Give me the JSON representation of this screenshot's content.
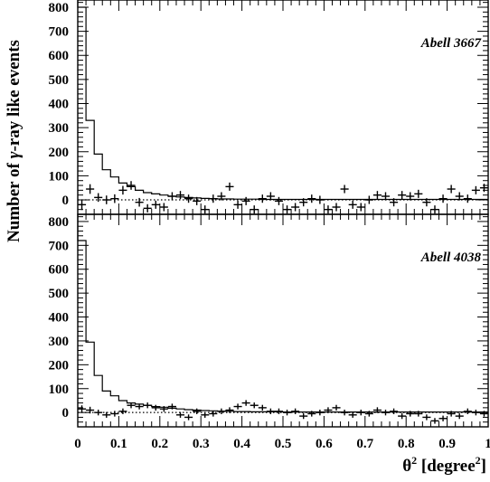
{
  "chart_data": {
    "type": "histogram",
    "ylabel": "Number of γ-ray like events",
    "xlabel": "θ2 [degree2]",
    "xlim": [
      0,
      1
    ],
    "x_ticks": [
      "0",
      "0.1",
      "0.2",
      "0.3",
      "0.4",
      "0.5",
      "0.6",
      "0.7",
      "0.8",
      "0.9",
      "1"
    ],
    "grid": false,
    "panels": [
      {
        "title": "Abell 3667",
        "ylim": [
          -60,
          830
        ],
        "y_ticks": [
          "0",
          "100",
          "200",
          "300",
          "400",
          "500",
          "600",
          "700",
          "800"
        ],
        "series": [
          {
            "style": "histogram-line",
            "bin_width": 0.02,
            "values": [
              800,
              330,
              190,
              125,
              95,
              70,
              55,
              40,
              30,
              25,
              20,
              15,
              12,
              10,
              8,
              6,
              5,
              4,
              4,
              3,
              3,
              3,
              2,
              2,
              2,
              2,
              2,
              2,
              2,
              2,
              2,
              2,
              2,
              2,
              2,
              2,
              2,
              2,
              2,
              2,
              2,
              2,
              2,
              2,
              2,
              2,
              2,
              2,
              2,
              2
            ]
          },
          {
            "style": "points-with-errors",
            "x": [
              0.01,
              0.03,
              0.05,
              0.07,
              0.09,
              0.11,
              0.13,
              0.15,
              0.17,
              0.19,
              0.21,
              0.23,
              0.25,
              0.27,
              0.29,
              0.31,
              0.33,
              0.35,
              0.37,
              0.39,
              0.41,
              0.43,
              0.45,
              0.47,
              0.49,
              0.51,
              0.53,
              0.55,
              0.57,
              0.59,
              0.61,
              0.63,
              0.65,
              0.67,
              0.69,
              0.71,
              0.73,
              0.75,
              0.77,
              0.79,
              0.81,
              0.83,
              0.85,
              0.87,
              0.89,
              0.91,
              0.93,
              0.95,
              0.97,
              0.99
            ],
            "y": [
              -20,
              45,
              10,
              0,
              5,
              40,
              60,
              -10,
              -35,
              -20,
              -30,
              15,
              20,
              5,
              -5,
              -40,
              5,
              15,
              55,
              -20,
              -5,
              -40,
              5,
              15,
              -5,
              -40,
              -30,
              -10,
              5,
              0,
              -40,
              -30,
              45,
              -20,
              -30,
              0,
              20,
              15,
              -10,
              20,
              15,
              25,
              -10,
              -40,
              5,
              45,
              15,
              5,
              40,
              50
            ],
            "yerr": [
              22,
              20,
              18,
              18,
              18,
              18,
              18,
              18,
              17,
              17,
              17,
              17,
              17,
              17,
              17,
              17,
              17,
              17,
              17,
              17,
              17,
              17,
              17,
              17,
              17,
              17,
              17,
              17,
              17,
              17,
              17,
              17,
              17,
              17,
              17,
              17,
              17,
              17,
              17,
              17,
              17,
              17,
              17,
              17,
              17,
              17,
              17,
              17,
              17,
              17
            ]
          },
          {
            "style": "dotted-line",
            "x": [
              0,
              1
            ],
            "y": [
              0,
              0
            ]
          }
        ]
      },
      {
        "title": "Abell 4038",
        "ylim": [
          -60,
          830
        ],
        "y_ticks": [
          "0",
          "100",
          "200",
          "300",
          "400",
          "500",
          "600",
          "700",
          "800"
        ],
        "series": [
          {
            "style": "histogram-line",
            "bin_width": 0.02,
            "values": [
              720,
              295,
              155,
              90,
              70,
              50,
              40,
              35,
              30,
              25,
              22,
              18,
              15,
              12,
              10,
              8,
              7,
              6,
              5,
              4,
              4,
              3,
              3,
              3,
              3,
              2,
              2,
              2,
              2,
              2,
              2,
              2,
              2,
              2,
              2,
              2,
              2,
              2,
              2,
              2,
              2,
              2,
              2,
              2,
              2,
              2,
              2,
              2,
              2,
              2
            ]
          },
          {
            "style": "points-with-errors",
            "x": [
              0.01,
              0.03,
              0.05,
              0.07,
              0.09,
              0.11,
              0.13,
              0.15,
              0.17,
              0.19,
              0.21,
              0.23,
              0.25,
              0.27,
              0.29,
              0.31,
              0.33,
              0.35,
              0.37,
              0.39,
              0.41,
              0.43,
              0.45,
              0.47,
              0.49,
              0.51,
              0.53,
              0.55,
              0.57,
              0.59,
              0.61,
              0.63,
              0.65,
              0.67,
              0.69,
              0.71,
              0.73,
              0.75,
              0.77,
              0.79,
              0.81,
              0.83,
              0.85,
              0.87,
              0.89,
              0.91,
              0.93,
              0.95,
              0.97,
              0.99
            ],
            "y": [
              15,
              10,
              0,
              -10,
              -5,
              5,
              30,
              25,
              30,
              20,
              15,
              25,
              -10,
              -20,
              5,
              -10,
              -5,
              5,
              10,
              25,
              40,
              30,
              20,
              5,
              5,
              0,
              5,
              -15,
              -5,
              0,
              10,
              20,
              0,
              -10,
              0,
              -5,
              10,
              0,
              5,
              -15,
              -5,
              -5,
              -20,
              -35,
              -25,
              -5,
              -15,
              5,
              0,
              -5
            ],
            "yerr": [
              15,
              14,
              12,
              12,
              12,
              12,
              12,
              12,
              12,
              12,
              12,
              12,
              12,
              12,
              12,
              12,
              12,
              12,
              12,
              12,
              12,
              12,
              12,
              12,
              12,
              12,
              12,
              12,
              12,
              12,
              12,
              12,
              12,
              12,
              12,
              12,
              12,
              12,
              12,
              12,
              12,
              12,
              12,
              12,
              12,
              12,
              12,
              12,
              12,
              12
            ]
          },
          {
            "style": "dotted-line",
            "x": [
              0,
              1
            ],
            "y": [
              0,
              0
            ]
          }
        ]
      }
    ]
  }
}
